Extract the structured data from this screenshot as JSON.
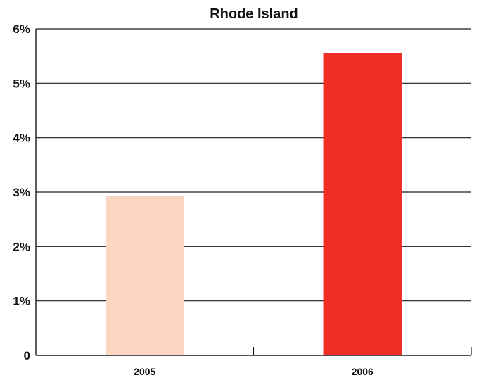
{
  "chart_data": {
    "type": "bar",
    "title": "Rhode Island",
    "categories": [
      "2005",
      "2006"
    ],
    "values": [
      2.93,
      5.56
    ],
    "xlabel": "",
    "ylabel": "",
    "ylim": [
      0,
      6
    ],
    "yticks": [
      0,
      1,
      2,
      3,
      4,
      5,
      6
    ],
    "ytick_labels": [
      "0",
      "1%",
      "2%",
      "3%",
      "4%",
      "5%",
      "6%"
    ],
    "grid": true,
    "colors": [
      "#fcd5c3",
      "#ee2e24"
    ]
  }
}
